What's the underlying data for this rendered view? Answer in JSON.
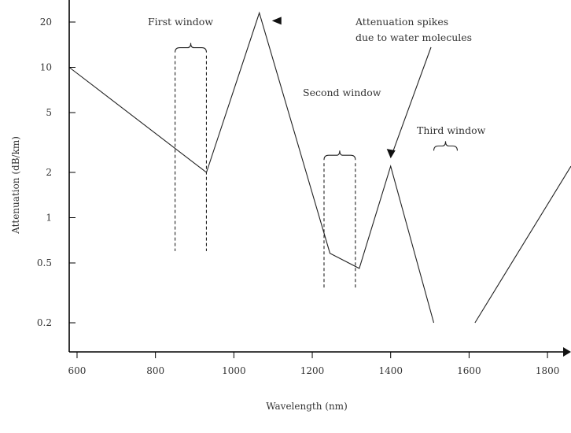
{
  "chart_data": {
    "type": "line",
    "title": "",
    "xlabel": "Wavelength (nm)",
    "ylabel": "Attenuation (dB/km)",
    "x_ticks": [
      600,
      800,
      1000,
      1200,
      1400,
      1600,
      1800
    ],
    "x_tick_labels": [
      "600",
      "800",
      "1000",
      "1200",
      "1400",
      "1600",
      "1800"
    ],
    "y_ticks": [
      0.2,
      0.5,
      1,
      2,
      5,
      10,
      20
    ],
    "y_tick_labels": [
      "0.2",
      "0.5",
      "1",
      "2",
      "5",
      "10",
      "20"
    ],
    "xlim": [
      580,
      1860
    ],
    "y_scale": "log",
    "ylim": [
      0.2,
      20
    ],
    "series": [
      {
        "segments": [
          [
            [
              580,
              10
            ],
            [
              930,
              2
            ],
            [
              1065,
              23
            ],
            [
              1245,
              0.58
            ],
            [
              1320,
              0.46
            ],
            [
              1400,
              2.2
            ],
            [
              1510,
              0.2
            ]
          ],
          [
            [
              1615,
              0.2
            ],
            [
              1860,
              2.2
            ]
          ]
        ]
      }
    ],
    "windows": [
      {
        "label": "First window",
        "range": [
          850,
          930
        ]
      },
      {
        "label": "Second window",
        "range": [
          1230,
          1310
        ]
      },
      {
        "label": "Third window",
        "range": [
          1510,
          1570
        ]
      }
    ],
    "annotations": [
      {
        "text_lines": [
          "Attenuation spikes",
          "due to water molecules"
        ]
      }
    ],
    "grid": false,
    "legend": "none"
  }
}
